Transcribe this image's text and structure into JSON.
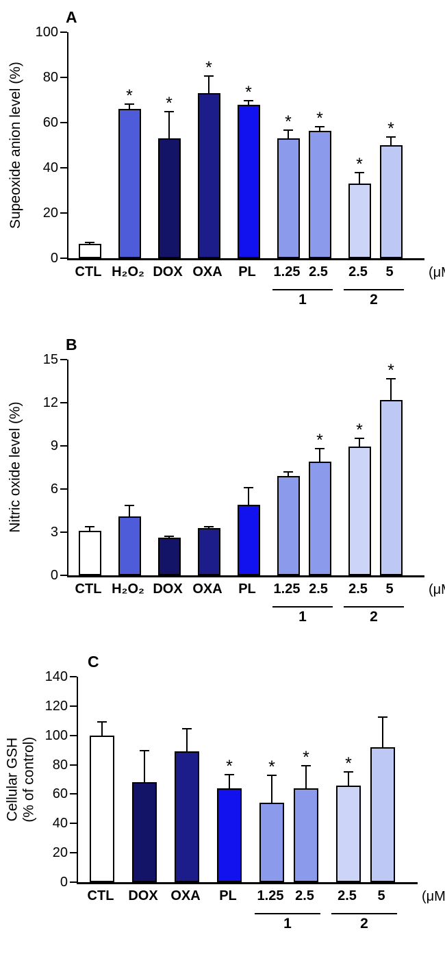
{
  "chart_data": [
    {
      "type": "bar",
      "panel": "A",
      "ylabel_lines": [
        "Supeoxide anion level (%)"
      ],
      "x_unit": "(μM)",
      "ylim": [
        0,
        100
      ],
      "yticks": [
        0,
        20,
        40,
        60,
        80,
        100
      ],
      "categories": [
        "CTL",
        "H₂O₂",
        "DOX",
        "OXA",
        "PL",
        "1.25",
        "2.5",
        "2.5",
        "5"
      ],
      "values": [
        6.5,
        66,
        53,
        73,
        68,
        53,
        56.5,
        33,
        50
      ],
      "errors": [
        0.8,
        2.5,
        12,
        8,
        2,
        4,
        2,
        5,
        4
      ],
      "significant": [
        false,
        true,
        true,
        true,
        true,
        true,
        true,
        true,
        true
      ],
      "significance_symbol": "*",
      "bar_colors": [
        "#ffffff",
        "#4e5cd9",
        "#131368",
        "#1c1c8a",
        "#1212ee",
        "#8c9aec",
        "#8c9aec",
        "#ccd4f8",
        "#bdc8f5"
      ],
      "compound_groups": [
        {
          "label": "1",
          "from": 5,
          "to": 6
        },
        {
          "label": "2",
          "from": 7,
          "to": 8
        }
      ]
    },
    {
      "type": "bar",
      "panel": "B",
      "ylabel_lines": [
        "Nitric oxide level (%)"
      ],
      "x_unit": "(μM)",
      "ylim": [
        0,
        15
      ],
      "yticks": [
        0,
        3,
        6,
        9,
        12,
        15
      ],
      "categories": [
        "CTL",
        "H₂O₂",
        "DOX",
        "OXA",
        "PL",
        "1.25",
        "2.5",
        "2.5",
        "5"
      ],
      "values": [
        3.1,
        4.1,
        2.6,
        3.3,
        4.9,
        6.9,
        7.9,
        8.95,
        12.2
      ],
      "errors": [
        0.35,
        0.8,
        0.12,
        0.15,
        1.25,
        0.35,
        0.95,
        0.6,
        1.5
      ],
      "significant": [
        false,
        false,
        false,
        false,
        false,
        false,
        true,
        true,
        true
      ],
      "significance_symbol": "*",
      "bar_colors": [
        "#ffffff",
        "#4e5cd9",
        "#131368",
        "#1c1c8a",
        "#1212ee",
        "#8c9aec",
        "#8c9aec",
        "#ccd4f8",
        "#bdc8f5"
      ],
      "compound_groups": [
        {
          "label": "1",
          "from": 5,
          "to": 6
        },
        {
          "label": "2",
          "from": 7,
          "to": 8
        }
      ]
    },
    {
      "type": "bar",
      "panel": "C",
      "ylabel_lines": [
        "Cellular GSH",
        "(% of control)"
      ],
      "x_unit": "(μM)",
      "ylim": [
        0,
        140
      ],
      "yticks": [
        0,
        20,
        40,
        60,
        80,
        100,
        120,
        140
      ],
      "categories": [
        "CTL",
        "DOX",
        "OXA",
        "PL",
        "1.25",
        "2.5",
        "2.5",
        "5"
      ],
      "values": [
        100,
        68,
        89,
        64,
        54,
        64,
        66,
        92
      ],
      "errors": [
        10,
        22,
        16,
        10,
        19,
        16,
        10,
        21
      ],
      "significant": [
        false,
        false,
        false,
        true,
        true,
        true,
        true,
        false
      ],
      "significance_symbol": "*",
      "bar_colors": [
        "#ffffff",
        "#131368",
        "#1c1c8a",
        "#1212ee",
        "#8c9aec",
        "#8c9aec",
        "#ccd4f8",
        "#bdc8f5"
      ],
      "compound_groups": [
        {
          "label": "1",
          "from": 4,
          "to": 5
        },
        {
          "label": "2",
          "from": 6,
          "to": 7
        }
      ]
    }
  ]
}
